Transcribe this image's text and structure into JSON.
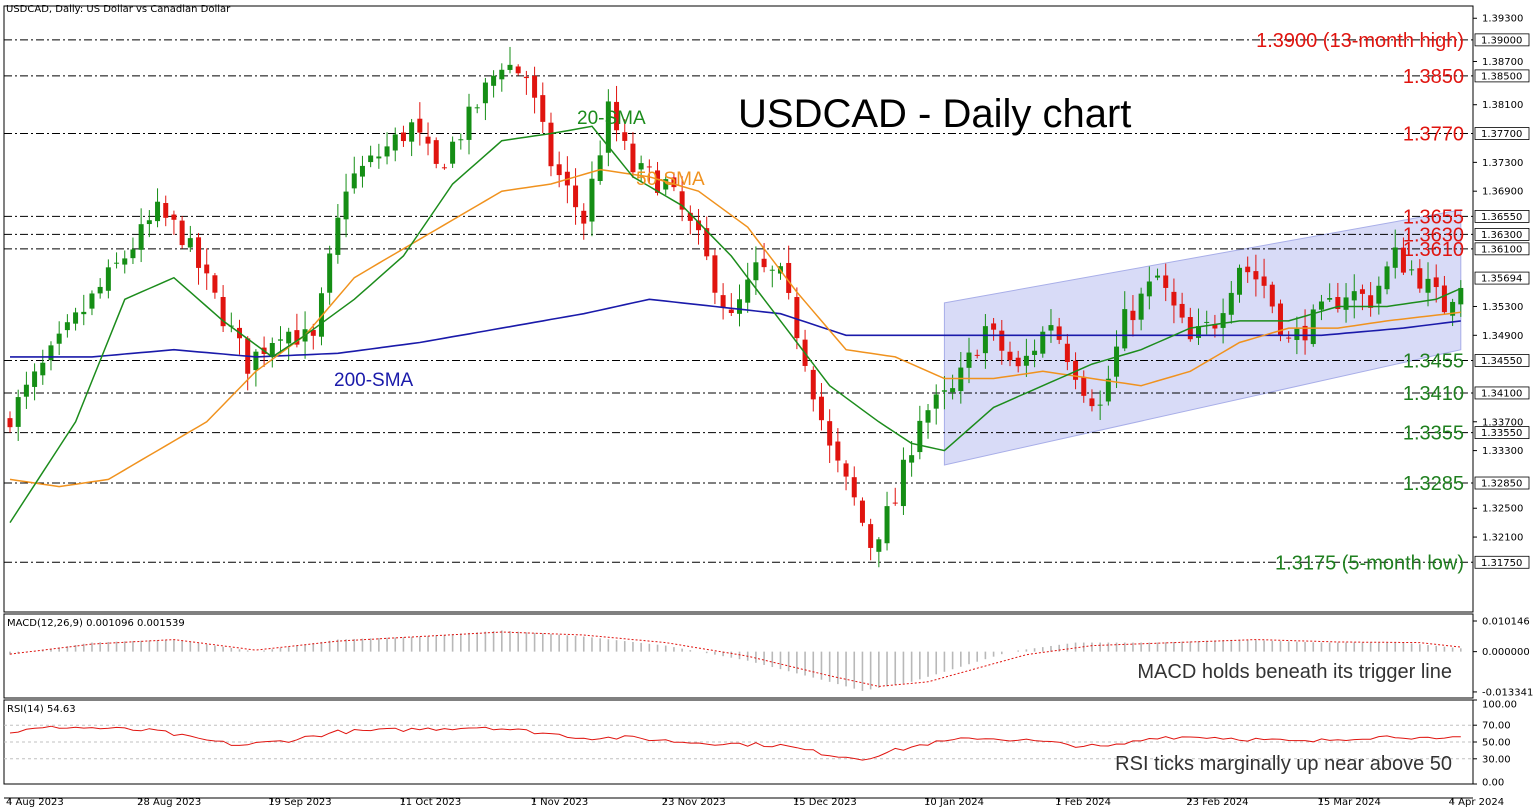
{
  "header": {
    "symbol_line": "USDCAD, Daily:  US Dollar vs Canadian Dollar",
    "title": "USDCAD - Daily chart"
  },
  "colors": {
    "bull": "#158e15",
    "bear": "#e0140f",
    "sma20": "#1c8c1c",
    "sma50": "#f0921e",
    "sma200": "#1a1aaa",
    "channel": "#c8ccf4",
    "support": "#1f7f1f",
    "resistance": "#e0140f"
  },
  "chart_data": [
    {
      "type": "candlestick",
      "ylim": [
        1.3106,
        1.3947
      ],
      "price_ticks": [
        "1.39300",
        "1.38700",
        "1.38100",
        "1.37300",
        "1.36900",
        "1.35300",
        "1.34900",
        "1.33700",
        "1.33300",
        "1.32500",
        "1.32100"
      ],
      "price_tick_values": [
        1.393,
        1.387,
        1.381,
        1.373,
        1.369,
        1.353,
        1.349,
        1.337,
        1.333,
        1.325,
        1.321
      ],
      "date_labels": [
        "4 Aug 2023",
        "28 Aug 2023",
        "19 Sep 2023",
        "11 Oct 2023",
        "1 Nov 2023",
        "23 Nov 2023",
        "15 Dec 2023",
        "10 Jan 2024",
        "1 Feb 2024",
        "23 Feb 2024",
        "15 Mar 2024",
        "4 Apr 2024"
      ],
      "date_label_bars": [
        0,
        16,
        32,
        48,
        64,
        80,
        96,
        112,
        128,
        144,
        160,
        176
      ],
      "bars": 178,
      "close_anchors": [
        [
          0,
          1.338
        ],
        [
          8,
          1.351
        ],
        [
          14,
          1.36
        ],
        [
          18,
          1.366
        ],
        [
          21,
          1.363
        ],
        [
          25,
          1.354
        ],
        [
          29,
          1.345
        ],
        [
          33,
          1.35
        ],
        [
          37,
          1.348
        ],
        [
          41,
          1.37
        ],
        [
          45,
          1.374
        ],
        [
          49,
          1.378
        ],
        [
          52,
          1.372
        ],
        [
          56,
          1.379
        ],
        [
          60,
          1.387
        ],
        [
          63,
          1.385
        ],
        [
          66,
          1.373
        ],
        [
          70,
          1.365
        ],
        [
          73,
          1.38
        ],
        [
          76,
          1.372
        ],
        [
          80,
          1.37
        ],
        [
          84,
          1.362
        ],
        [
          88,
          1.351
        ],
        [
          91,
          1.358
        ],
        [
          94,
          1.357
        ],
        [
          97,
          1.346
        ],
        [
          100,
          1.333
        ],
        [
          103,
          1.326
        ],
        [
          105,
          1.32
        ],
        [
          108,
          1.326
        ],
        [
          111,
          1.338
        ],
        [
          115,
          1.341
        ],
        [
          119,
          1.35
        ],
        [
          123,
          1.344
        ],
        [
          127,
          1.351
        ],
        [
          131,
          1.342
        ],
        [
          133,
          1.339
        ],
        [
          136,
          1.351
        ],
        [
          140,
          1.357
        ],
        [
          144,
          1.348
        ],
        [
          147,
          1.351
        ],
        [
          150,
          1.359
        ],
        [
          153,
          1.356
        ],
        [
          156,
          1.348
        ],
        [
          159,
          1.351
        ],
        [
          163,
          1.355
        ],
        [
          166,
          1.354
        ],
        [
          169,
          1.36
        ],
        [
          172,
          1.357
        ],
        [
          175,
          1.353
        ],
        [
          177,
          1.3569
        ]
      ],
      "sma20_anchors": [
        [
          0,
          1.323
        ],
        [
          8,
          1.337
        ],
        [
          14,
          1.354
        ],
        [
          20,
          1.357
        ],
        [
          26,
          1.351
        ],
        [
          32,
          1.346
        ],
        [
          36,
          1.349
        ],
        [
          42,
          1.354
        ],
        [
          48,
          1.36
        ],
        [
          54,
          1.37
        ],
        [
          60,
          1.376
        ],
        [
          66,
          1.377
        ],
        [
          71,
          1.378
        ],
        [
          76,
          1.371
        ],
        [
          82,
          1.367
        ],
        [
          88,
          1.36
        ],
        [
          94,
          1.351
        ],
        [
          100,
          1.342
        ],
        [
          106,
          1.337
        ],
        [
          110,
          1.334
        ],
        [
          114,
          1.333
        ],
        [
          120,
          1.339
        ],
        [
          126,
          1.342
        ],
        [
          132,
          1.345
        ],
        [
          138,
          1.347
        ],
        [
          144,
          1.35
        ],
        [
          150,
          1.351
        ],
        [
          156,
          1.351
        ],
        [
          162,
          1.353
        ],
        [
          168,
          1.353
        ],
        [
          174,
          1.354
        ],
        [
          177,
          1.3555
        ]
      ],
      "sma50_anchors": [
        [
          0,
          1.329
        ],
        [
          6,
          1.328
        ],
        [
          12,
          1.329
        ],
        [
          18,
          1.333
        ],
        [
          24,
          1.337
        ],
        [
          30,
          1.344
        ],
        [
          36,
          1.349
        ],
        [
          42,
          1.357
        ],
        [
          48,
          1.361
        ],
        [
          54,
          1.365
        ],
        [
          60,
          1.369
        ],
        [
          66,
          1.37
        ],
        [
          72,
          1.372
        ],
        [
          78,
          1.371
        ],
        [
          84,
          1.369
        ],
        [
          90,
          1.364
        ],
        [
          96,
          1.355
        ],
        [
          102,
          1.347
        ],
        [
          108,
          1.346
        ],
        [
          114,
          1.343
        ],
        [
          120,
          1.343
        ],
        [
          126,
          1.344
        ],
        [
          132,
          1.343
        ],
        [
          138,
          1.342
        ],
        [
          144,
          1.344
        ],
        [
          150,
          1.348
        ],
        [
          156,
          1.35
        ],
        [
          162,
          1.35
        ],
        [
          168,
          1.351
        ],
        [
          177,
          1.3522
        ]
      ],
      "sma200_anchors": [
        [
          0,
          1.346
        ],
        [
          10,
          1.346
        ],
        [
          20,
          1.347
        ],
        [
          30,
          1.346
        ],
        [
          40,
          1.3465
        ],
        [
          50,
          1.348
        ],
        [
          60,
          1.35
        ],
        [
          70,
          1.352
        ],
        [
          78,
          1.354
        ],
        [
          86,
          1.353
        ],
        [
          94,
          1.352
        ],
        [
          102,
          1.349
        ],
        [
          110,
          1.349
        ],
        [
          120,
          1.349
        ],
        [
          130,
          1.349
        ],
        [
          140,
          1.349
        ],
        [
          150,
          1.349
        ],
        [
          160,
          1.349
        ],
        [
          170,
          1.35
        ],
        [
          177,
          1.351
        ]
      ],
      "channel": {
        "lower": [
          [
            114,
            1.331
          ],
          [
            177,
            1.347
          ]
        ],
        "upper": [
          [
            114,
            1.3535
          ],
          [
            177,
            1.3664
          ]
        ]
      }
    },
    {
      "type": "macd",
      "params_label": "MACD(12,26,9) 0.001096 0.001539",
      "ylim": [
        -0.01535,
        0.01246
      ],
      "ticks": [
        "0.010146",
        "0.000000",
        "-0.013341"
      ],
      "tick_values": [
        0.010146,
        0.0,
        -0.013341
      ],
      "note": "MACD holds beneath its trigger line",
      "hist_anchors": [
        [
          0,
          -0.001
        ],
        [
          10,
          0.003
        ],
        [
          20,
          0.004
        ],
        [
          30,
          0.0
        ],
        [
          40,
          0.004
        ],
        [
          50,
          0.005
        ],
        [
          60,
          0.007
        ],
        [
          70,
          0.005
        ],
        [
          80,
          0.002
        ],
        [
          90,
          -0.003
        ],
        [
          100,
          -0.01
        ],
        [
          104,
          -0.013
        ],
        [
          110,
          -0.01
        ],
        [
          116,
          -0.005
        ],
        [
          122,
          0.0
        ],
        [
          130,
          0.003
        ],
        [
          140,
          0.003
        ],
        [
          150,
          0.004
        ],
        [
          160,
          0.003
        ],
        [
          170,
          0.003
        ],
        [
          177,
          0.0011
        ]
      ],
      "signal_anchors": [
        [
          0,
          -0.0008
        ],
        [
          10,
          0.0025
        ],
        [
          20,
          0.004
        ],
        [
          30,
          0.0005
        ],
        [
          40,
          0.0035
        ],
        [
          50,
          0.005
        ],
        [
          60,
          0.0065
        ],
        [
          70,
          0.0055
        ],
        [
          80,
          0.003
        ],
        [
          90,
          -0.0015
        ],
        [
          100,
          -0.008
        ],
        [
          106,
          -0.0115
        ],
        [
          112,
          -0.01
        ],
        [
          118,
          -0.0055
        ],
        [
          124,
          -0.001
        ],
        [
          132,
          0.002
        ],
        [
          142,
          0.003
        ],
        [
          152,
          0.004
        ],
        [
          162,
          0.0032
        ],
        [
          172,
          0.003
        ],
        [
          177,
          0.0015
        ]
      ]
    },
    {
      "type": "rsi",
      "params_label": "RSI(14) 54.63",
      "ylim": [
        0,
        100
      ],
      "ticks": [
        "100.00",
        "70.00",
        "50.00",
        "30.00",
        "0.00"
      ],
      "tick_values": [
        100,
        70,
        50,
        30,
        0
      ],
      "note": "RSI ticks marginally up near above 50",
      "anchors": [
        [
          0,
          62
        ],
        [
          6,
          68
        ],
        [
          12,
          66
        ],
        [
          18,
          63
        ],
        [
          22,
          55
        ],
        [
          28,
          46
        ],
        [
          34,
          52
        ],
        [
          40,
          62
        ],
        [
          46,
          64
        ],
        [
          52,
          66
        ],
        [
          58,
          68
        ],
        [
          64,
          62
        ],
        [
          70,
          55
        ],
        [
          76,
          55
        ],
        [
          82,
          50
        ],
        [
          88,
          48
        ],
        [
          94,
          46
        ],
        [
          100,
          35
        ],
        [
          104,
          30
        ],
        [
          108,
          40
        ],
        [
          112,
          48
        ],
        [
          118,
          55
        ],
        [
          124,
          52
        ],
        [
          130,
          46
        ],
        [
          134,
          44
        ],
        [
          140,
          56
        ],
        [
          146,
          56
        ],
        [
          152,
          53
        ],
        [
          158,
          50
        ],
        [
          164,
          55
        ],
        [
          170,
          57
        ],
        [
          174,
          52
        ],
        [
          177,
          55
        ]
      ]
    }
  ],
  "levels": [
    {
      "price": 1.39,
      "label": "1.3900 (13-month high)",
      "tag": "1.39000",
      "role": "resistance"
    },
    {
      "price": 1.385,
      "label": "1.3850",
      "tag": "1.38500",
      "role": "resistance"
    },
    {
      "price": 1.377,
      "label": "1.3770",
      "tag": "1.37700",
      "role": "resistance"
    },
    {
      "price": 1.3655,
      "label": "1.3655",
      "tag": "1.36550",
      "role": "resistance"
    },
    {
      "price": 1.363,
      "label": "1.3630",
      "tag": "1.36300",
      "role": "resistance"
    },
    {
      "price": 1.361,
      "label": "1.3610",
      "tag": "1.36100",
      "role": "resistance"
    },
    {
      "price": 1.3455,
      "label": "1.3455",
      "tag": "1.34550",
      "role": "support"
    },
    {
      "price": 1.341,
      "label": "1.3410",
      "tag": "1.34100",
      "role": "support"
    },
    {
      "price": 1.3355,
      "label": "1.3355",
      "tag": "1.33550",
      "role": "support"
    },
    {
      "price": 1.3285,
      "label": "1.3285",
      "tag": "1.32850",
      "role": "support"
    },
    {
      "price": 1.3175,
      "label": "1.3175 (5-month low)",
      "tag": "1.31750",
      "role": "support"
    }
  ],
  "current_price_tag": "1.35694",
  "current_price": 1.35694,
  "sma_labels": {
    "sma20": "20-SMA",
    "sma50": "50-SMA",
    "sma200": "200-SMA"
  }
}
